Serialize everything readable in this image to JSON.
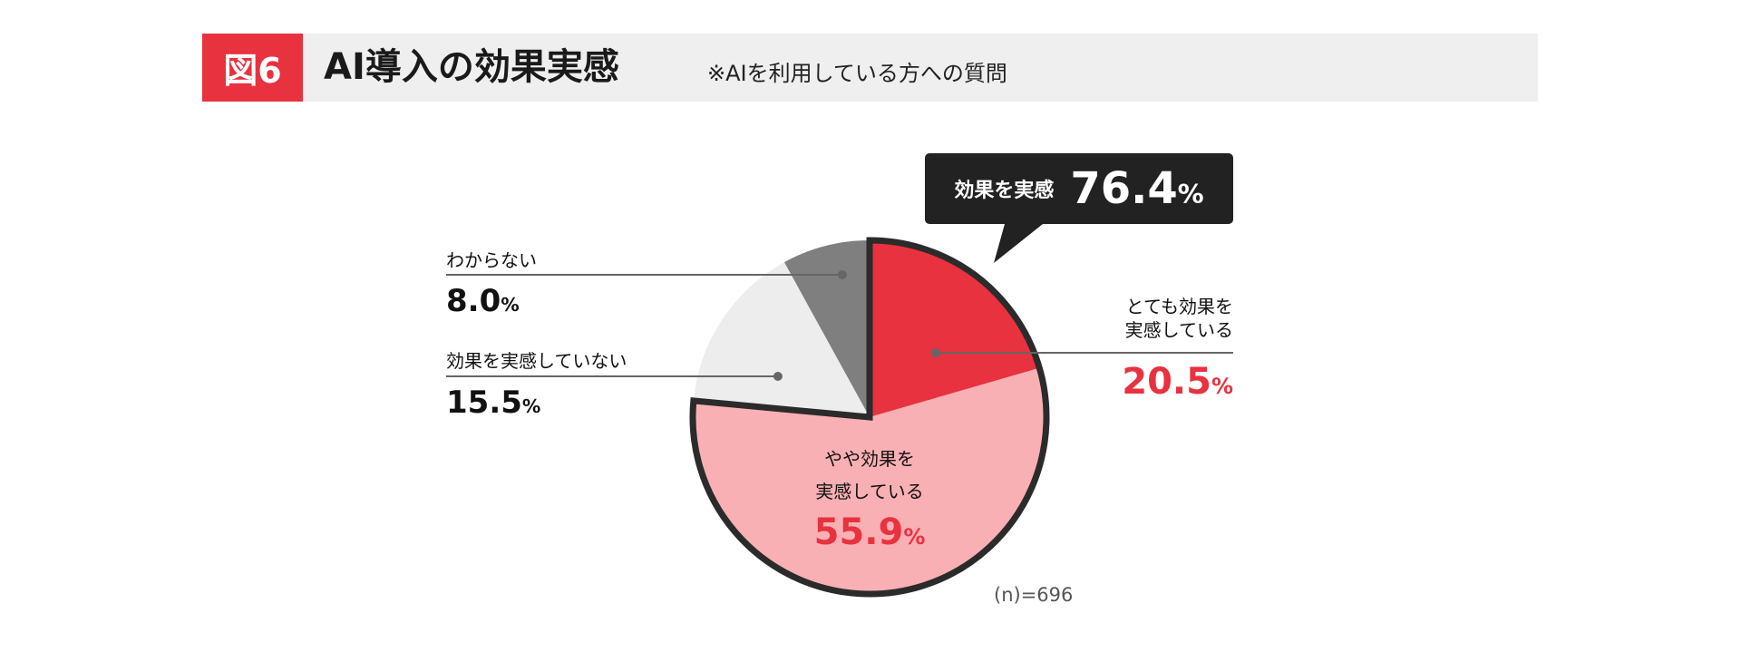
{
  "header": {
    "figure_label": "図6",
    "title": "AI導入の効果実感",
    "subtitle": "※AIを利用している方への質問"
  },
  "callout": {
    "label": "効果を実感",
    "value": "76.4",
    "unit": "%"
  },
  "sample_size": "(n)=696",
  "chart_data": {
    "type": "pie",
    "title": "AI導入の効果実感",
    "start": "12 o'clock",
    "direction": "clockwise",
    "slices": [
      {
        "label_lines": [
          "とても効果を",
          "実感している"
        ],
        "value": 20.5,
        "display": "20.5",
        "color": "#e8323f"
      },
      {
        "label_lines": [
          "やや効果を",
          "実感している"
        ],
        "value": 55.9,
        "display": "55.9",
        "color": "#f9b0b4"
      },
      {
        "label_lines": [
          "効果を実感していない"
        ],
        "value": 15.5,
        "display": "15.5",
        "color": "#ededed"
      },
      {
        "label_lines": [
          "わからない"
        ],
        "value": 8.0,
        "display": "8.0",
        "color": "#7f7f7f"
      }
    ],
    "highlight_group": {
      "label": "効果を実感",
      "value": 76.4,
      "slices": [
        0,
        1
      ]
    },
    "unit": "%"
  }
}
